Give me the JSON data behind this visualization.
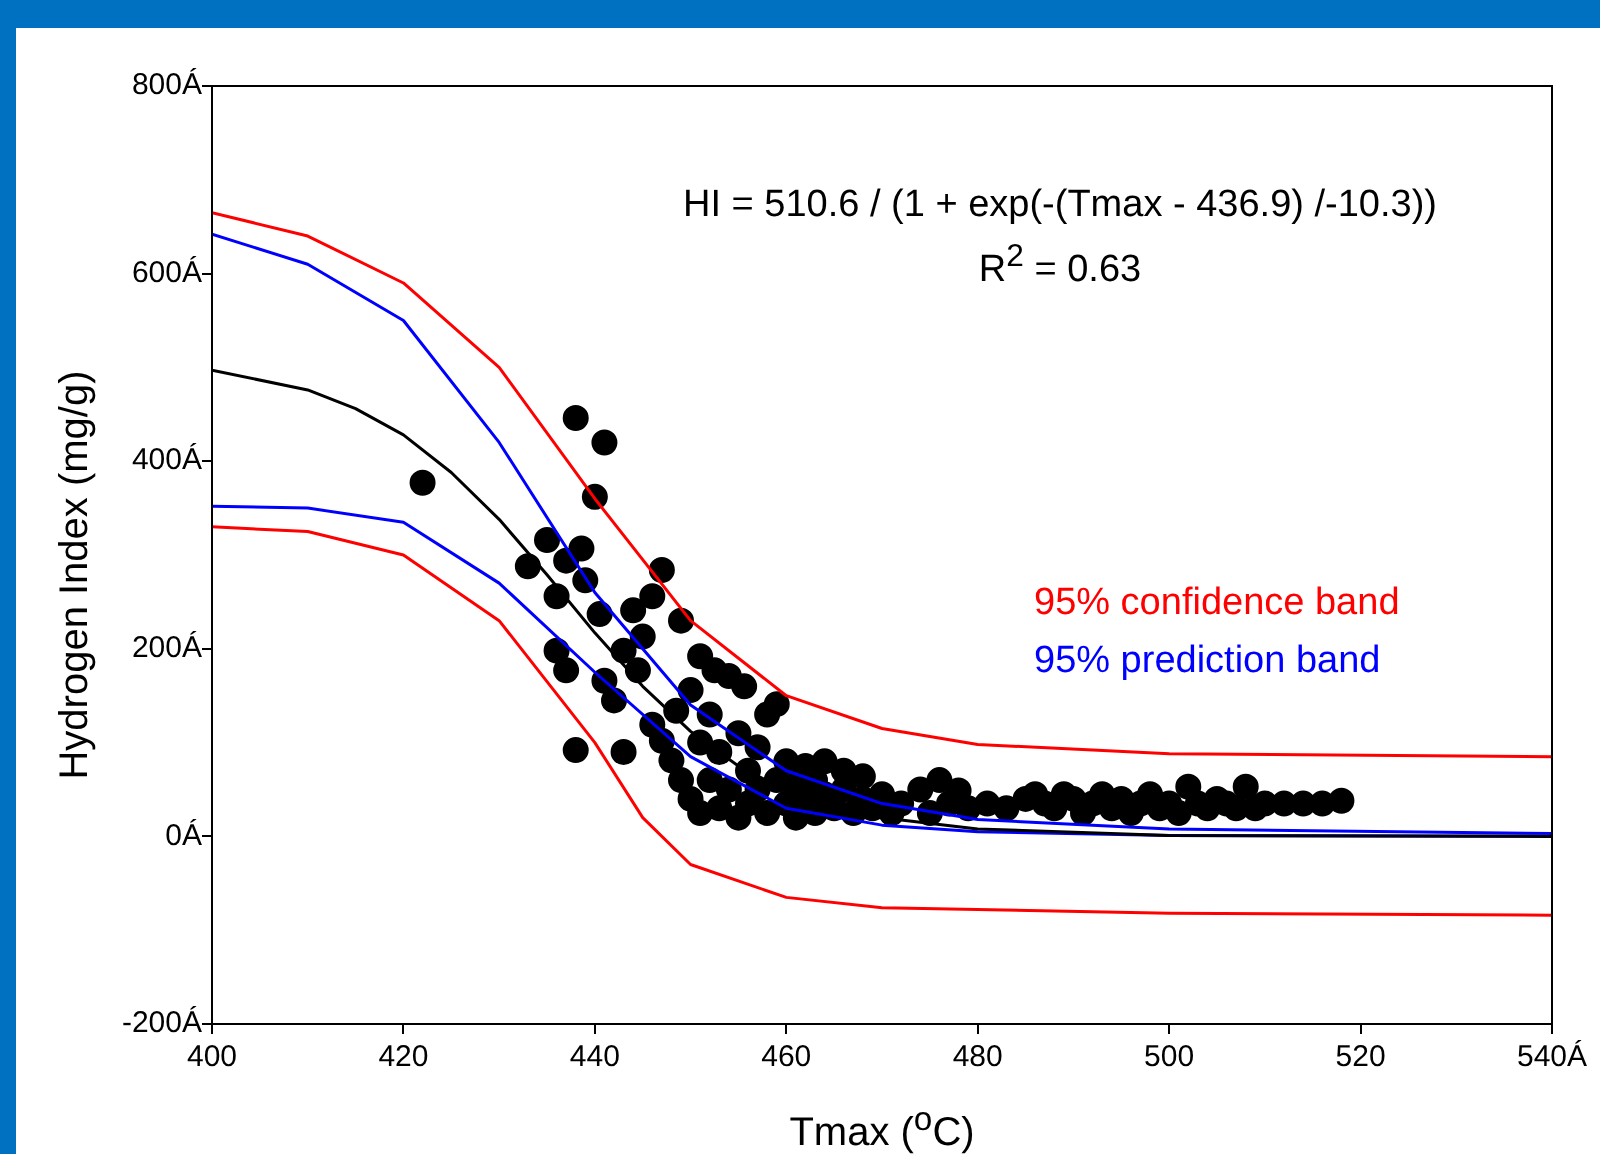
{
  "chart_data": {
    "type": "scatter",
    "xlabel": "Tmax ($^{o}$C)",
    "ylabel": "Hydrogen Index (mg/g)",
    "annotations": [
      "HI = 510.6 / (1 + exp(-(Tmax - 436.9) /-10.3))",
      "R$^{2}$ = 0.63"
    ],
    "xlim": [
      400,
      540
    ],
    "ylim": [
      -200,
      800
    ],
    "xticks": [
      400,
      420,
      440,
      460,
      480,
      500,
      520,
      {
        "value": 540,
        "label": "540Á"
      }
    ],
    "yticks": [
      {
        "value": -200,
        "label": "-200Á"
      },
      {
        "value": 0,
        "label": "0Á"
      },
      {
        "value": 200,
        "label": "200Á"
      },
      {
        "value": 400,
        "label": "400Á"
      },
      {
        "value": 600,
        "label": "600Á"
      },
      {
        "value": 800,
        "label": "800Á"
      }
    ],
    "grid": false,
    "series": [
      {
        "type": "scatter",
        "marker": "circle",
        "color": "#000000",
        "x": [
          422,
          433,
          435,
          436,
          436,
          437,
          437,
          438,
          438,
          438.6,
          439,
          440,
          440.5,
          441,
          441,
          442,
          443,
          443,
          444,
          444.5,
          445,
          446,
          446,
          447,
          447,
          448,
          448.5,
          449,
          449,
          450,
          450,
          451,
          451,
          451,
          452,
          452.5,
          452,
          453,
          453,
          454,
          454,
          455,
          455.6,
          455,
          456,
          456,
          457,
          457,
          458,
          458,
          459,
          459,
          460,
          460,
          461,
          461,
          462,
          462,
          463,
          463,
          464,
          464,
          465,
          466,
          466,
          467,
          468,
          468,
          469,
          470,
          471,
          472,
          474,
          475,
          476,
          477,
          478,
          479,
          481,
          483,
          485,
          486,
          487,
          488,
          489,
          490,
          491,
          492,
          493,
          494,
          495,
          496,
          497,
          498,
          499,
          500,
          501,
          502,
          503,
          504,
          505,
          506,
          507,
          508,
          509,
          510,
          512,
          514,
          516,
          518
        ],
        "values": [
          377,
          288,
          316,
          256,
          198,
          294,
          177,
          446,
          92,
          307,
          273,
          362,
          237,
          420,
          166,
          145,
          90,
          198,
          241,
          177,
          213,
          256,
          119,
          284,
          102,
          81,
          134,
          230,
          60,
          156,
          40,
          192,
          100,
          25,
          130,
          177,
          60,
          30,
          90,
          171,
          50,
          110,
          160,
          20,
          70,
          35,
          95,
          50,
          130,
          25,
          141,
          60,
          80,
          35,
          55,
          20,
          75,
          40,
          60,
          25,
          80,
          45,
          30,
          70,
          50,
          25,
          64,
          40,
          30,
          45,
          25,
          35,
          50,
          25,
          60,
          35,
          49,
          30,
          35,
          30,
          40,
          45,
          35,
          30,
          45,
          40,
          25,
          35,
          45,
          30,
          40,
          25,
          35,
          45,
          30,
          35,
          25,
          53,
          35,
          30,
          40,
          35,
          30,
          53,
          30,
          35,
          35,
          35,
          35,
          38
        ]
      },
      {
        "type": "line",
        "marker": "none",
        "color": "#000000",
        "x": [
          400,
          410,
          415,
          420,
          425,
          430,
          435,
          440,
          445,
          450,
          455,
          460,
          470,
          480,
          500,
          540
        ],
        "values": [
          497,
          476,
          456,
          428,
          388,
          338,
          279,
          217,
          160,
          112,
          75,
          49,
          20,
          8,
          1,
          0
        ]
      },
      {
        "type": "line",
        "marker": "none",
        "name": "95% confidence band",
        "color": "#ff0000",
        "x": [
          400,
          410,
          420,
          430,
          440,
          450,
          460,
          470,
          480,
          500,
          540
        ],
        "values": [
          665,
          640,
          590,
          500,
          360,
          230,
          150,
          115,
          98,
          88,
          85
        ]
      },
      {
        "type": "line",
        "marker": "none",
        "color": "#ff0000",
        "x": [
          400,
          410,
          420,
          430,
          440,
          445,
          450,
          460,
          470,
          500,
          540
        ],
        "values": [
          330,
          325,
          300,
          230,
          100,
          20,
          -30,
          -65,
          -76,
          -82,
          -84
        ]
      },
      {
        "type": "line",
        "marker": "none",
        "name": "95% prediction band",
        "color": "#0000ff",
        "x": [
          400,
          410,
          420,
          430,
          440,
          450,
          460,
          470,
          480,
          500,
          540
        ],
        "values": [
          642,
          610,
          550,
          420,
          260,
          140,
          70,
          35,
          18,
          8,
          3
        ]
      },
      {
        "type": "line",
        "marker": "none",
        "color": "#0000ff",
        "x": [
          400,
          410,
          420,
          430,
          440,
          450,
          460,
          470,
          480,
          500,
          540
        ],
        "values": [
          352,
          350,
          335,
          270,
          175,
          85,
          30,
          12,
          5,
          1,
          0
        ]
      }
    ]
  }
}
